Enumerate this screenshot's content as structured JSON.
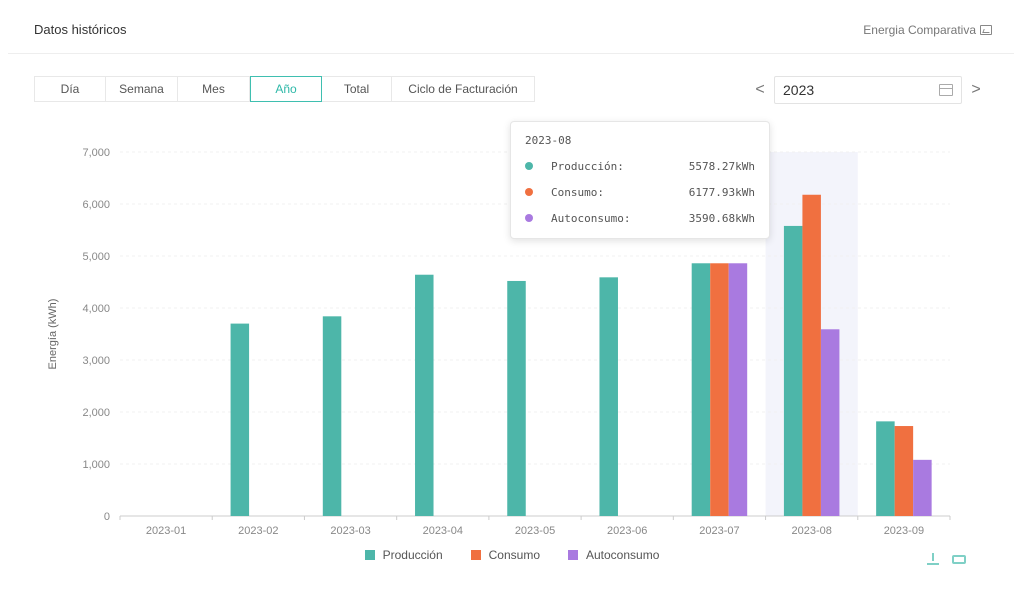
{
  "header": {
    "title": "Datos históricos",
    "compare_label": "Energia Comparativa"
  },
  "tabs": [
    {
      "label": "Día",
      "active": false
    },
    {
      "label": "Semana",
      "active": false
    },
    {
      "label": "Mes",
      "active": false
    },
    {
      "label": "Año",
      "active": true
    },
    {
      "label": "Total",
      "active": false
    },
    {
      "label": "Ciclo de Facturación",
      "active": false
    }
  ],
  "date_picker": {
    "prev": "<",
    "next": ">",
    "value": "2023"
  },
  "tooltip": {
    "title": "2023-08",
    "rows": [
      {
        "name": "Producción:",
        "value": "5578.27kWh",
        "color": "#4db6a9"
      },
      {
        "name": "Consumo:",
        "value": "6177.93kWh",
        "color": "#f07040"
      },
      {
        "name": "Autoconsumo:",
        "value": "3590.68kWh",
        "color": "#a97ae0"
      }
    ]
  },
  "colors": {
    "accent": "#3fbfb0",
    "produccion": "#4db6a9",
    "consumo": "#f07040",
    "autoconsumo": "#a97ae0"
  },
  "chart_data": {
    "type": "bar",
    "title": "",
    "xlabel": "",
    "ylabel": "Energía (kWh)",
    "ylim": [
      0,
      7000
    ],
    "yticks": [
      "0",
      "1,000",
      "2,000",
      "3,000",
      "4,000",
      "5,000",
      "6,000",
      "7,000"
    ],
    "categories": [
      "2023-01",
      "2023-02",
      "2023-03",
      "2023-04",
      "2023-05",
      "2023-06",
      "2023-07",
      "2023-08",
      "2023-09"
    ],
    "series": [
      {
        "name": "Producción",
        "color": "#4db6a9",
        "values": [
          0,
          3700,
          3840,
          4640,
          4520,
          4590,
          4860,
          5578.27,
          1820
        ]
      },
      {
        "name": "Consumo",
        "color": "#f07040",
        "values": [
          0,
          0,
          0,
          0,
          0,
          0,
          4860,
          6177.93,
          1730
        ]
      },
      {
        "name": "Autoconsumo",
        "color": "#a97ae0",
        "values": [
          0,
          0,
          0,
          0,
          0,
          0,
          4860,
          3590.68,
          1080
        ]
      }
    ],
    "highlighted_category": "2023-08",
    "grid": true,
    "legend": "bottom-center"
  }
}
